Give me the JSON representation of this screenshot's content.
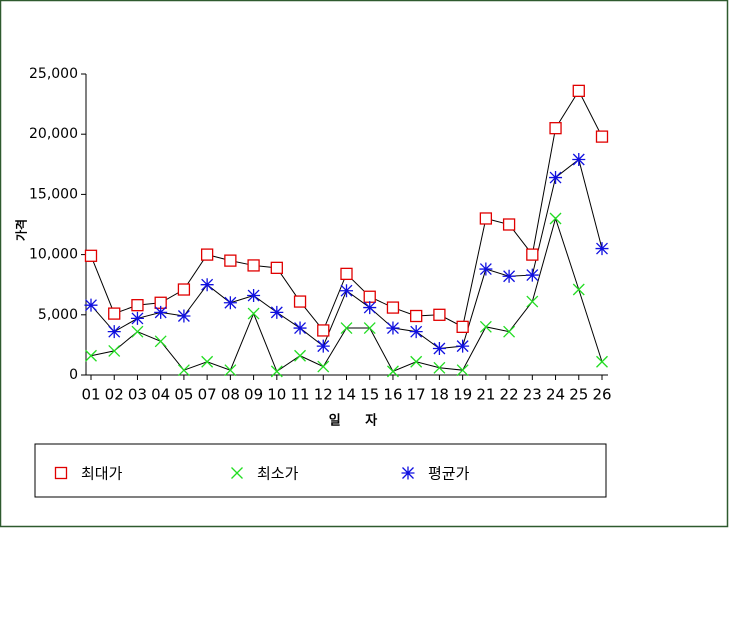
{
  "chart_data": {
    "type": "line",
    "x_label": "일 자",
    "y_label": "가격",
    "categories": [
      "01",
      "02",
      "03",
      "04",
      "05",
      "07",
      "08",
      "09",
      "10",
      "11",
      "12",
      "14",
      "15",
      "16",
      "17",
      "18",
      "19",
      "21",
      "22",
      "23",
      "24",
      "25",
      "26"
    ],
    "series": [
      {
        "name": "최대가",
        "color": "#e00000",
        "marker": "square",
        "values": [
          9900,
          5100,
          5800,
          6000,
          7100,
          10000,
          9500,
          9100,
          8900,
          6100,
          3700,
          8400,
          6500,
          5600,
          4900,
          5000,
          4000,
          13000,
          12500,
          10000,
          20500,
          23600,
          19800
        ]
      },
      {
        "name": "최소가",
        "color": "#22dd22",
        "marker": "x",
        "values": [
          1600,
          2000,
          3600,
          2800,
          400,
          1100,
          400,
          5100,
          300,
          1600,
          700,
          3900,
          3900,
          300,
          1100,
          600,
          400,
          4000,
          3600,
          6100,
          13000,
          7100,
          1100
        ]
      },
      {
        "name": "평균가",
        "color": "#1010e0",
        "marker": "star",
        "values": [
          5800,
          3600,
          4700,
          5200,
          4900,
          7500,
          6000,
          6600,
          5200,
          3900,
          2400,
          7000,
          5600,
          3900,
          3600,
          2200,
          2400,
          8800,
          8200,
          8300,
          16400,
          17900,
          10500
        ]
      }
    ],
    "ylim": [
      0,
      25000
    ],
    "yticks": [
      0,
      {
        "value": 5000,
        "label": "5,000"
      },
      {
        "value": 10000,
        "label": "10,000"
      },
      {
        "value": 15000,
        "label": "15,000"
      },
      {
        "value": 20000,
        "label": "20,000"
      },
      {
        "value": 25000,
        "label": "25,000"
      }
    ],
    "line_color": "#000000"
  }
}
